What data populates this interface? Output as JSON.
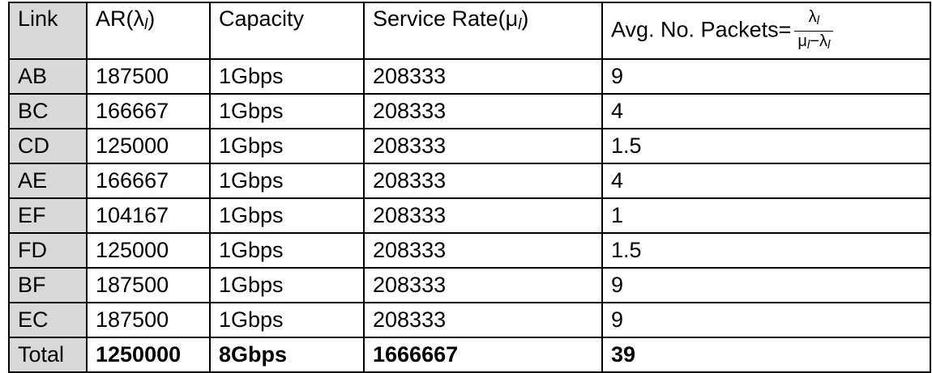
{
  "headers": {
    "link": "Link",
    "ar_prefix": "AR(",
    "ar_symbol": "λ",
    "ar_sub": "l",
    "ar_suffix": ")",
    "capacity": "Capacity",
    "service_prefix": "Service Rate(",
    "service_symbol": "μ",
    "service_sub": "l",
    "service_suffix": ")",
    "avg_prefix": "Avg. No. Packets=",
    "frac_num_symbol": "λ",
    "frac_num_sub": "l",
    "frac_den_mu": "μ",
    "frac_den_mu_sub": "l",
    "frac_den_minus": "−",
    "frac_den_lambda": "λ",
    "frac_den_lambda_sub": "l"
  },
  "rows": [
    {
      "link": "AB",
      "ar": "187500",
      "capacity": "1Gbps",
      "service": "208333",
      "avg": "9"
    },
    {
      "link": "BC",
      "ar": "166667",
      "capacity": "1Gbps",
      "service": "208333",
      "avg": "4"
    },
    {
      "link": "CD",
      "ar": "125000",
      "capacity": "1Gbps",
      "service": "208333",
      "avg": "1.5"
    },
    {
      "link": "AE",
      "ar": "166667",
      "capacity": "1Gbps",
      "service": "208333",
      "avg": "4"
    },
    {
      "link": "EF",
      "ar": "104167",
      "capacity": "1Gbps",
      "service": "208333",
      "avg": "1"
    },
    {
      "link": "FD",
      "ar": "125000",
      "capacity": "1Gbps",
      "service": "208333",
      "avg": "1.5"
    },
    {
      "link": "BF",
      "ar": "187500",
      "capacity": "1Gbps",
      "service": "208333",
      "avg": "9"
    },
    {
      "link": "EC",
      "ar": "187500",
      "capacity": "1Gbps",
      "service": "208333",
      "avg": "9"
    }
  ],
  "total": {
    "link": "Total",
    "ar": "1250000",
    "capacity": "8Gbps",
    "service": "1666667",
    "avg": "39"
  }
}
